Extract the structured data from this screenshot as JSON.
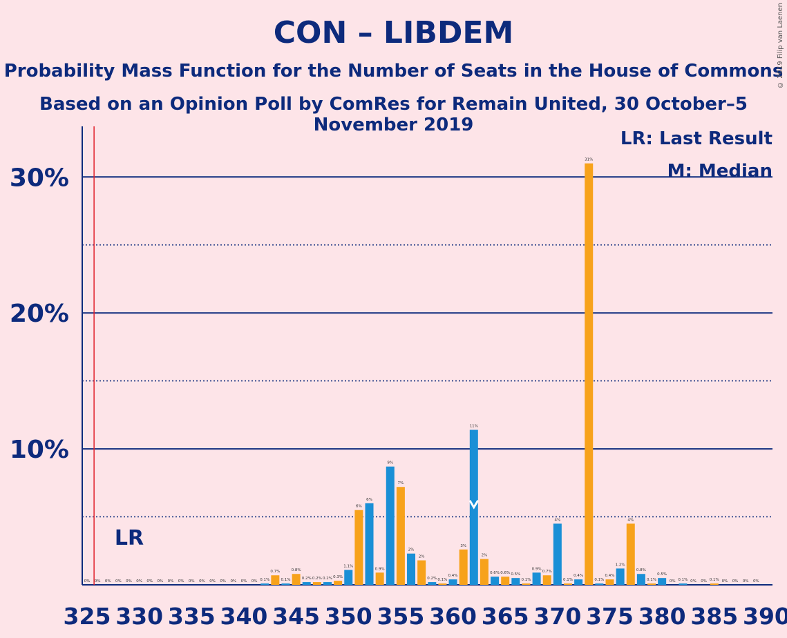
{
  "title": "CON – LIBDEM",
  "subtitle": "Probability Mass Function for the Number of Seats in the House of Commons",
  "subtitle2": "Based on an Opinion Poll by ComRes for Remain United, 30 October–5 November 2019",
  "copyright": "© 2019 Filip van Laenen",
  "colors": {
    "background": "#fde4e8",
    "axis": "#0d2a7c",
    "blue_bar": "#1a8fd6",
    "orange_bar": "#f7a21b",
    "last_result_line": "#e0202a"
  },
  "chart_data": {
    "type": "bar",
    "x_range": [
      325,
      390
    ],
    "ylim": [
      0,
      33
    ],
    "ytick_labels": [
      "10%",
      "20%",
      "30%"
    ],
    "ytick_values": [
      10,
      20,
      30
    ],
    "xtick_labels": [
      "325",
      "330",
      "335",
      "340",
      "345",
      "350",
      "355",
      "360",
      "365",
      "370",
      "375",
      "380",
      "385",
      "390"
    ],
    "xtick_values": [
      325,
      330,
      335,
      340,
      345,
      350,
      355,
      360,
      365,
      370,
      375,
      380,
      385,
      390
    ],
    "minor_grid": [
      5,
      15,
      25
    ],
    "last_result": 326,
    "last_result_label": "LR",
    "median": 362,
    "legend": [
      "LR: Last Result",
      "M: Median"
    ],
    "legend_placement": "top-right",
    "seats": [
      325,
      326,
      327,
      328,
      329,
      330,
      331,
      332,
      333,
      334,
      335,
      336,
      337,
      338,
      339,
      340,
      341,
      342,
      343,
      344,
      345,
      346,
      347,
      348,
      349,
      350,
      351,
      352,
      353,
      354,
      355,
      356,
      357,
      358,
      359,
      360,
      361,
      362,
      363,
      364,
      365,
      366,
      367,
      368,
      369,
      370,
      371,
      372,
      373,
      374,
      375,
      376,
      377,
      378,
      379,
      380,
      381,
      382,
      383,
      384,
      385,
      386,
      387,
      388,
      389
    ],
    "values": [
      0,
      0,
      0,
      0,
      0,
      0,
      0,
      0,
      0,
      0,
      0,
      0,
      0,
      0,
      0,
      0,
      0,
      0.1,
      0.7,
      0.1,
      0.8,
      0.2,
      0.2,
      0.2,
      0.3,
      1.1,
      5.5,
      6.0,
      0.9,
      8.7,
      7.2,
      2.3,
      1.8,
      0.2,
      0.1,
      0.4,
      2.6,
      11.4,
      1.9,
      0.6,
      0.6,
      0.5,
      0.1,
      0.9,
      0.7,
      4.5,
      0.1,
      0.4,
      31.0,
      0.1,
      0.4,
      1.2,
      4.5,
      0.8,
      0.1,
      0.5,
      0,
      0.1,
      0,
      0,
      0.1,
      0,
      0,
      0,
      0
    ],
    "labels": [
      "0%",
      "0%",
      "0%",
      "0%",
      "0%",
      "0%",
      "0%",
      "0%",
      "0%",
      "0%",
      "0%",
      "0%",
      "0%",
      "0%",
      "0%",
      "0%",
      "0%",
      "0.1%",
      "0.7%",
      "0.1%",
      "0.8%",
      "0.2%",
      "0.2%",
      "0.2%",
      "0.3%",
      "1.1%",
      "6%",
      "6%",
      "0.9%",
      "9%",
      "7%",
      "2%",
      "2%",
      "0.2%",
      "0.1%",
      "0.4%",
      "3%",
      "11%",
      "2%",
      "0.6%",
      "0.6%",
      "0.5%",
      "0.1%",
      "0.9%",
      "0.7%",
      "4%",
      "0.1%",
      "0.4%",
      "31%",
      "0.1%",
      "0.4%",
      "1.2%",
      "4%",
      "0.8%",
      "0.1%",
      "0.5%",
      "0%",
      "0.1%",
      "0%",
      "0%",
      "0.1%",
      "0%",
      "0%",
      "0%",
      "0%"
    ]
  }
}
